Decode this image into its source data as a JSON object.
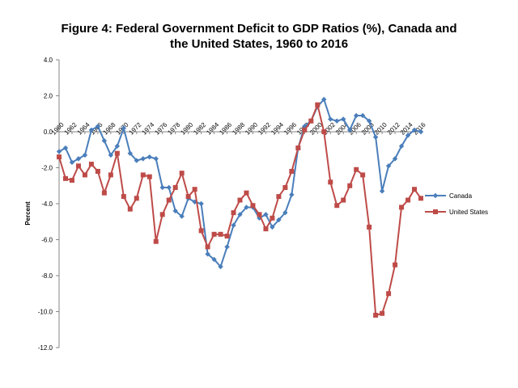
{
  "chart_data": {
    "type": "line",
    "title_line1": "Figure 4: Federal Government Deficit to GDP Ratios (%), Canada and",
    "title_line2": "the United States, 1960 to 2016",
    "ylabel": "Percent",
    "xlabel": "",
    "ylim": [
      -12,
      4
    ],
    "yticks": [
      "4.0",
      "2.0",
      "0.0",
      "-2.0",
      "-4.0",
      "-6.0",
      "-8.0",
      "-10.0",
      "-12.0"
    ],
    "xticks": [
      "1960",
      "1962",
      "1964",
      "1966",
      "1968",
      "1970",
      "1972",
      "1974",
      "1976",
      "1978",
      "1980",
      "1982",
      "1984",
      "1986",
      "1988",
      "1990",
      "1992",
      "1994",
      "1996",
      "1998",
      "2000",
      "2002",
      "2004",
      "2006",
      "2008",
      "2010",
      "2012",
      "2014",
      "2016"
    ],
    "x": [
      1960,
      1961,
      1962,
      1963,
      1964,
      1965,
      1966,
      1967,
      1968,
      1969,
      1970,
      1971,
      1972,
      1973,
      1974,
      1975,
      1976,
      1977,
      1978,
      1979,
      1980,
      1981,
      1982,
      1983,
      1984,
      1985,
      1986,
      1987,
      1988,
      1989,
      1990,
      1991,
      1992,
      1993,
      1994,
      1995,
      1996,
      1997,
      1998,
      1999,
      2000,
      2001,
      2002,
      2003,
      2004,
      2005,
      2006,
      2007,
      2008,
      2009,
      2010,
      2011,
      2012,
      2013,
      2014,
      2015,
      2016
    ],
    "legend_position": "right",
    "grid": false,
    "series": [
      {
        "name": "Canada",
        "color": "#4a7ebb",
        "marker": "diamond",
        "values": [
          -1.1,
          -0.9,
          -1.7,
          -1.5,
          -1.3,
          0.1,
          0.3,
          -0.5,
          -1.3,
          -0.8,
          0.2,
          -1.2,
          -1.6,
          -1.5,
          -1.4,
          -1.5,
          -3.1,
          -3.1,
          -4.4,
          -4.7,
          -3.7,
          -3.9,
          -4.0,
          -6.8,
          -7.1,
          -7.5,
          -6.4,
          -5.2,
          -4.6,
          -4.2,
          -4.2,
          -4.8,
          -4.6,
          -5.3,
          -4.9,
          -4.5,
          -3.5,
          -0.9,
          0.3,
          0.6,
          1.4,
          1.8,
          0.7,
          0.6,
          0.7,
          0.1,
          0.9,
          0.9,
          0.6,
          -0.3,
          -3.3,
          -1.9,
          -1.5,
          -0.8,
          -0.2,
          0.1,
          0.0
        ]
      },
      {
        "name": "United States",
        "color": "#be4b48",
        "marker": "square",
        "values": [
          -1.4,
          -2.6,
          -2.7,
          -1.9,
          -2.4,
          -1.8,
          -2.2,
          -3.4,
          -2.4,
          -1.2,
          -3.6,
          -4.3,
          -3.7,
          -2.4,
          -2.5,
          -6.1,
          -4.6,
          -3.8,
          -3.1,
          -2.3,
          -3.6,
          -3.2,
          -5.5,
          -6.4,
          -5.7,
          -5.7,
          -5.8,
          -4.5,
          -3.8,
          -3.4,
          -4.1,
          -4.6,
          -5.4,
          -4.8,
          -3.6,
          -3.1,
          -2.2,
          -0.9,
          0.1,
          0.6,
          1.5,
          0.0,
          -2.8,
          -4.1,
          -3.8,
          -3.0,
          -2.1,
          -2.4,
          -5.3,
          -10.2,
          -10.1,
          -9.0,
          -7.4,
          -4.2,
          -3.8,
          -3.2,
          -3.7
        ]
      }
    ]
  }
}
